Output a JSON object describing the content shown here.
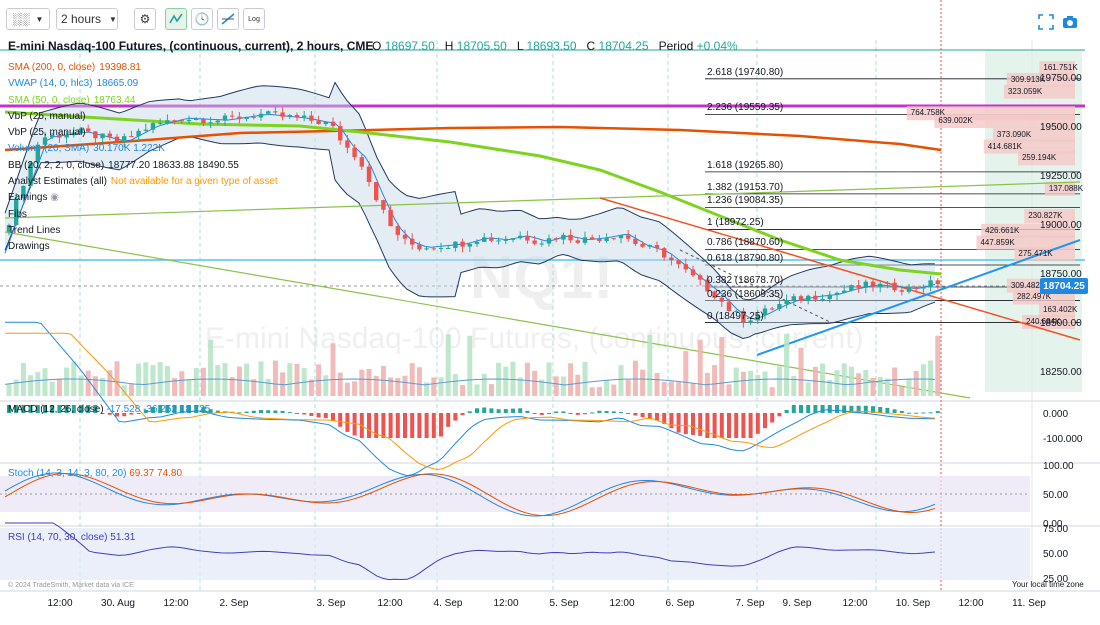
{
  "toolbar": {
    "interval": "2 hours",
    "log_label": "Log",
    "icons": [
      "chart-type-icon",
      "chevron-down-icon",
      "settings-gear-icon",
      "indicators-icon",
      "clock-icon",
      "draw-tools-icon",
      "log-scale-icon",
      "fullscreen-icon",
      "camera-icon"
    ]
  },
  "header": {
    "title": "E-mini Nasdaq-100 Futures, (continuous, current), 2 hours, CME",
    "o_label": "O",
    "o_val": "18697.50",
    "h_label": "H",
    "h_val": "18705.50",
    "l_label": "L",
    "l_val": "18693.50",
    "c_label": "C",
    "c_val": "18704.25",
    "period_label": "Period",
    "period_val": "+0.04%"
  },
  "watermark": {
    "symbol": "NQ1!",
    "name": "E-mini Nasdaq-100 Futures, (continuous, current)"
  },
  "legend": [
    {
      "label": "SMA (200, 0, close)",
      "vals": "19398.81",
      "color": "#e65100"
    },
    {
      "label": "VWAP (14, 0, hlc3)",
      "vals": "18665.09",
      "color": "#1e88e5"
    },
    {
      "label": "SMA (50, 0, close)",
      "vals": "18763.44",
      "color": "#7cd320"
    },
    {
      "label": "VbP (25, manual)",
      "vals": "",
      "color": "#131722"
    },
    {
      "label": "VbP (25, manual)",
      "vals": "",
      "color": "#131722"
    },
    {
      "label": "Volume (20, SMA)",
      "vals": "30.170K  1.222K",
      "color": "#1e88e5"
    },
    {
      "label": "BB (20, 2, 2, 0, close)",
      "vals": "18777.20  18633.88  18490.55",
      "color": "#131722"
    },
    {
      "label": "Analyst Estimates (all)",
      "vals": "Not available for a given type of asset",
      "color": "#131722",
      "vals_color": "#ff9800"
    },
    {
      "label": "Earnings",
      "vals": "",
      "color": "#131722"
    },
    {
      "label": "Fibs",
      "vals": "",
      "color": "#131722"
    },
    {
      "label": "Trend Lines",
      "vals": "",
      "color": "#131722"
    },
    {
      "label": "Drawings",
      "vals": "",
      "color": "#131722"
    }
  ],
  "price_axis": [
    "19750.00",
    "19500.00",
    "19250.00",
    "19000.00",
    "18750.00",
    "18500.00",
    "18250.00"
  ],
  "last_price": "18704.25",
  "fib_levels": [
    {
      "label": "2.618 (19740.80)",
      "price": 19740.8
    },
    {
      "label": "2.236 (19559.35)",
      "price": 19559.35
    },
    {
      "label": "1.618 (19265.80)",
      "price": 19265.8
    },
    {
      "label": "1.382 (19153.70)",
      "price": 19153.7
    },
    {
      "label": "1.236 (19084.35)",
      "price": 19084.35
    },
    {
      "label": "1 (18972.25)",
      "price": 18972.25
    },
    {
      "label": "0.786 (18870.60)",
      "price": 18870.6
    },
    {
      "label": "0.618 (18790.80)",
      "price": 18790.8
    },
    {
      "label": "0.382 (18678.70)",
      "price": 18678.7
    },
    {
      "label": "0.236 (18609.35)",
      "price": 18609.35
    },
    {
      "label": "0 (18497.25)",
      "price": 18497.25
    }
  ],
  "vbp_labels": [
    {
      "label": "161.751K",
      "price": 19790
    },
    {
      "label": "309.913K",
      "price": 19730
    },
    {
      "label": "323.059K",
      "price": 19670
    },
    {
      "label": "764.758K",
      "price": 19560
    },
    {
      "label": "639.002K",
      "price": 19520
    },
    {
      "label": "373.090K",
      "price": 19450
    },
    {
      "label": "414.681K",
      "price": 19390
    },
    {
      "label": "259.194K",
      "price": 19330
    },
    {
      "label": "137.088K",
      "price": 19175
    },
    {
      "label": "230.827K",
      "price": 19035
    },
    {
      "label": "426.661K",
      "price": 18960
    },
    {
      "label": "447.859K",
      "price": 18900
    },
    {
      "label": "275.471K",
      "price": 18840
    },
    {
      "label": "309.482K",
      "price": 18680
    },
    {
      "label": "282.497K",
      "price": 18620
    },
    {
      "label": "163.402K",
      "price": 18555
    },
    {
      "label": "240.684K",
      "price": 18495
    }
  ],
  "macd": {
    "label": "MACD (12, 26, close)",
    "vals": "-17.528  -36.252  18.725",
    "axis": [
      "0.000",
      "-100.000"
    ]
  },
  "stoch": {
    "label": "Stoch (14, 3, 14, 3, 80, 20)",
    "vals": "69.37  74.80",
    "axis": [
      "100.00",
      "50.00",
      "0.00"
    ]
  },
  "rsi": {
    "label": "RSI (14, 70, 30, close)",
    "vals": "51.31",
    "axis": [
      "75.00",
      "50.00",
      "25.00"
    ]
  },
  "time_axis": [
    "12:00",
    "30. Aug",
    "12:00",
    "2. Sep",
    "3. Sep",
    "12:00",
    "4. Sep",
    "12:00",
    "5. Sep",
    "12:00",
    "6. Sep",
    "7. Sep",
    "9. Sep",
    "12:00",
    "10. Sep",
    "12:00",
    "11. Sep"
  ],
  "credit": "© 2024 TradeSmith, Market data via ICE",
  "tz_note": "Your local time zone",
  "colors": {
    "up": "#26a69a",
    "down": "#ef5350",
    "sma200": "#e65100",
    "sma50": "#7cd320",
    "vwap": "#1e88e5",
    "bb": "#1f3a5f",
    "macd": "#1e88e5",
    "signal": "#ff9800",
    "stoch_k": "#1e88e5",
    "stoch_d": "#e65100",
    "rsi": "#3f3fbf",
    "magenta": "#c62fd0"
  }
}
